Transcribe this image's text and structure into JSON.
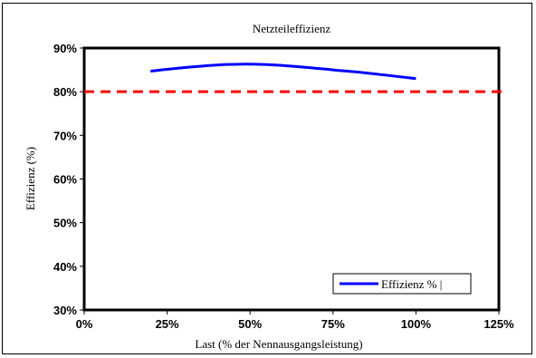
{
  "chart_data": {
    "type": "line",
    "title": "Netzteileffizienz",
    "xlabel": "Last (% der Nennausgangsleistung)",
    "ylabel": "Effizienz (%)",
    "xlim": [
      0,
      125
    ],
    "ylim": [
      30,
      90
    ],
    "x_ticks": [
      "0%",
      "25%",
      "50%",
      "75%",
      "100%",
      "125%"
    ],
    "y_ticks": [
      "30%",
      "40%",
      "50%",
      "60%",
      "70%",
      "80%",
      "90%"
    ],
    "grid": false,
    "series": [
      {
        "name": "Effizienz % |",
        "color": "#0000ff",
        "x": [
          20,
          30,
          40,
          47,
          55,
          65,
          75,
          85,
          100
        ],
        "values": [
          84.7,
          85.5,
          86.1,
          86.3,
          86.2,
          85.7,
          85.0,
          84.3,
          83.0
        ]
      }
    ],
    "reference_line": {
      "value": 80,
      "color": "#ff0000",
      "style": "dashed"
    },
    "legend": {
      "position": "bottom-right"
    }
  }
}
